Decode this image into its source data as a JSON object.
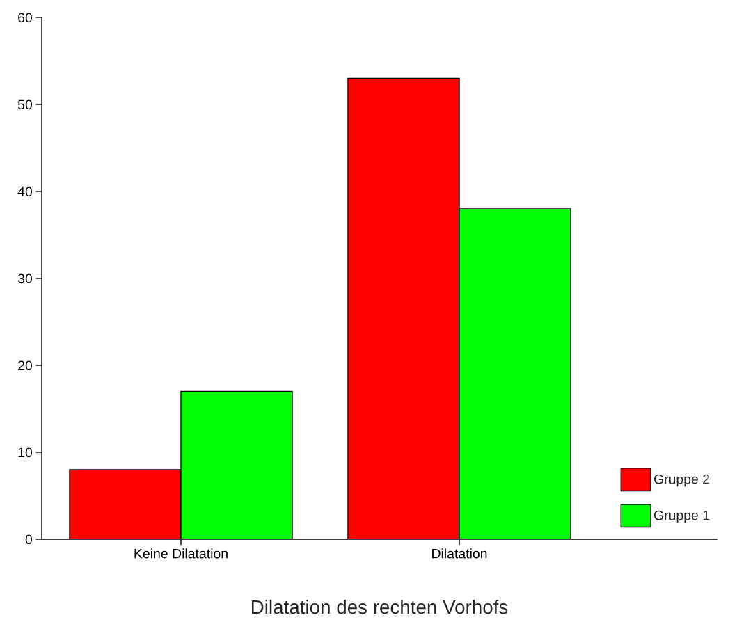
{
  "chart_data": {
    "type": "bar",
    "xlabel": "Dilatation des rechten Vorhofs",
    "categories": [
      "Keine Dilatation",
      "Dilatation"
    ],
    "series": [
      {
        "name": "Gruppe 2",
        "color": "#ff0000",
        "values": [
          8,
          53
        ]
      },
      {
        "name": "Gruppe 1",
        "color": "#00ff00",
        "values": [
          17,
          38
        ]
      }
    ],
    "ylim": [
      0,
      60
    ],
    "yticks": [
      0,
      10,
      20,
      30,
      40,
      50,
      60
    ],
    "grid": false,
    "legend": "right"
  }
}
